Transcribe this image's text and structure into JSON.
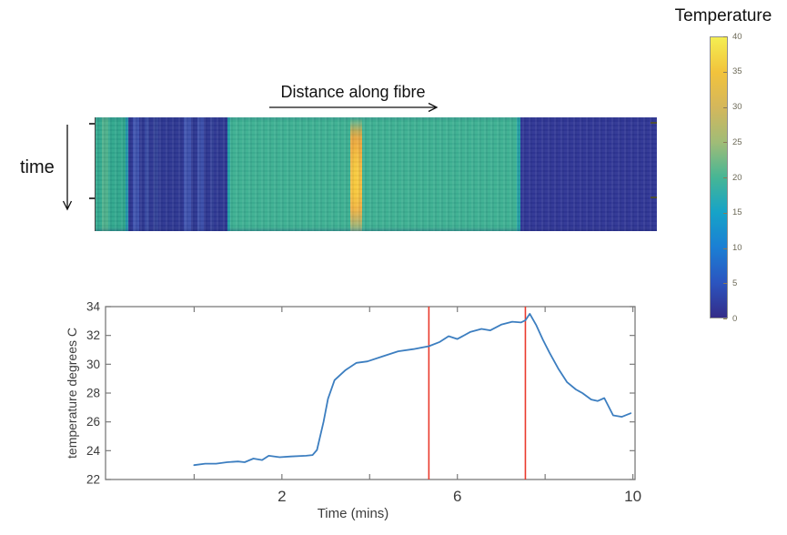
{
  "chart_data": [
    {
      "type": "heatmap",
      "xlabel": "Distance along fibre",
      "ylabel": "time",
      "colorbar": {
        "title": "Temperature",
        "ticks": [
          40,
          35,
          30,
          25,
          20,
          15,
          10,
          5,
          0
        ],
        "range": [
          0,
          40
        ],
        "gradient": [
          {
            "v": 0,
            "color": "#342c88"
          },
          {
            "v": 5,
            "color": "#2b55c0"
          },
          {
            "v": 10,
            "color": "#1b7fd4"
          },
          {
            "v": 15,
            "color": "#16a3c8"
          },
          {
            "v": 20,
            "color": "#46b695"
          },
          {
            "v": 25,
            "color": "#a0bc77"
          },
          {
            "v": 30,
            "color": "#d4b75c"
          },
          {
            "v": 35,
            "color": "#f2c33c"
          },
          {
            "v": 40,
            "color": "#f4ee52"
          }
        ]
      },
      "bands": [
        {
          "x0": 0,
          "x1": 7,
          "color": "#33aa8e",
          "value_c": 20
        },
        {
          "x0": 7,
          "x1": 14,
          "color": "#4fb28c",
          "value_c": 22
        },
        {
          "x0": 14,
          "x1": 33,
          "color": "#31a88d",
          "value_c": 20
        },
        {
          "x0": 33,
          "x1": 36,
          "color": "#2193a8",
          "value_c": 14
        },
        {
          "x0": 36,
          "x1": 145,
          "color": "#2d3792",
          "value_c": 3
        },
        {
          "x0": 41,
          "x1": 48,
          "color": "#3e53ae",
          "value_c": 6
        },
        {
          "x0": 54,
          "x1": 59,
          "color": "#36479f",
          "value_c": 4
        },
        {
          "x0": 64,
          "x1": 69,
          "color": "#344398",
          "value_c": 4
        },
        {
          "x0": 97,
          "x1": 105,
          "color": "#3e52ad",
          "value_c": 6
        },
        {
          "x0": 112,
          "x1": 119,
          "color": "#3b4ea9",
          "value_c": 5
        },
        {
          "x0": 126,
          "x1": 130,
          "color": "#344199",
          "value_c": 4
        },
        {
          "x0": 145,
          "x1": 148,
          "color": "#21a1a4",
          "value_c": 15
        },
        {
          "x0": 148,
          "x1": 463,
          "color": "#3db192",
          "value_c": 21
        },
        {
          "x0": 463,
          "x1": 467,
          "color": "#23a2a6",
          "value_c": 15
        },
        {
          "x0": 467,
          "x1": 617,
          "color": "#303695",
          "value_c": 3
        }
      ],
      "hot_stripe": {
        "x0": 280,
        "x1": 293,
        "core_x0": 282,
        "core_x1": 290,
        "value_c": 34
      }
    },
    {
      "type": "line",
      "xlabel": "Time (mins)",
      "ylabel": "temperature degrees C",
      "xlim": [
        -2.02,
        10.05
      ],
      "ylim": [
        22,
        34
      ],
      "xticks": [
        0,
        2,
        4,
        6,
        8,
        10
      ],
      "xtick_labels": [
        "",
        "2",
        "",
        "6",
        "",
        "10"
      ],
      "yticks": [
        22,
        24,
        26,
        28,
        30,
        32,
        34
      ],
      "line_color": "#3c7ec0",
      "x": [
        0,
        0.25,
        0.5,
        0.75,
        1.0,
        1.15,
        1.35,
        1.55,
        1.7,
        1.95,
        2.2,
        2.55,
        2.7,
        2.8,
        2.95,
        3.05,
        3.2,
        3.45,
        3.7,
        3.95,
        4.3,
        4.65,
        5.0,
        5.35,
        5.6,
        5.8,
        6.0,
        6.3,
        6.55,
        6.75,
        7.0,
        7.25,
        7.45,
        7.55,
        7.65,
        7.8,
        7.95,
        8.1,
        8.3,
        8.5,
        8.7,
        8.85,
        9.05,
        9.2,
        9.35,
        9.55,
        9.75,
        9.95
      ],
      "y": [
        23.0,
        23.1,
        23.1,
        23.2,
        23.25,
        23.2,
        23.45,
        23.35,
        23.65,
        23.55,
        23.6,
        23.65,
        23.7,
        24.05,
        26.0,
        27.6,
        28.9,
        29.6,
        30.1,
        30.2,
        30.55,
        30.9,
        31.05,
        31.25,
        31.55,
        31.95,
        31.75,
        32.25,
        32.45,
        32.35,
        32.75,
        32.95,
        32.9,
        33.05,
        33.5,
        32.7,
        31.7,
        30.8,
        29.7,
        28.75,
        28.25,
        28.0,
        27.55,
        27.45,
        27.65,
        26.45,
        26.35,
        26.6
      ],
      "vlines": [
        {
          "x": 5.35,
          "color": "#e93a2d"
        },
        {
          "x": 7.55,
          "color": "#e93a2d"
        }
      ]
    }
  ]
}
